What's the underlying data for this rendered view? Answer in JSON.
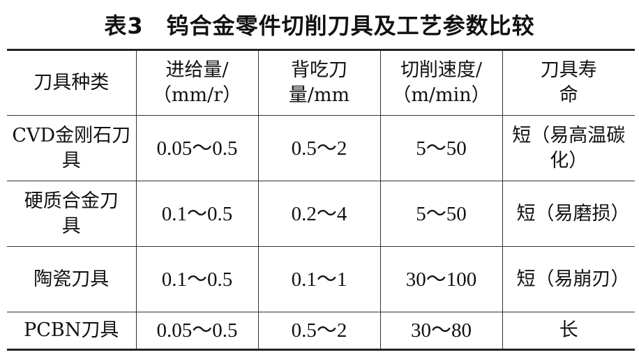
{
  "title": "表3　钨合金零件切削刀具及工艺参数比较",
  "headers": [
    "刀具种类",
    "进给量/（mm/r）",
    "背吃刀量/mm",
    "切削速度/（m/min）",
    "刀具寿命"
  ],
  "rows": [
    [
      "CVD金刚石刀具",
      "0.05～0.5",
      "0.5～2",
      "5～50",
      "短（易高温碳化）"
    ],
    [
      "硬质合金刀具",
      "0.1～0.5",
      "0.2～4",
      "5～50",
      "短（易磨损）"
    ],
    [
      "陶瓷刀具",
      "0.1～0.5",
      "0.1～1",
      "30～100",
      "短（易崩刃）"
    ],
    [
      "PCBN刀具",
      "0.05～0.5",
      "0.5～2",
      "30～80",
      "长"
    ]
  ]
}
